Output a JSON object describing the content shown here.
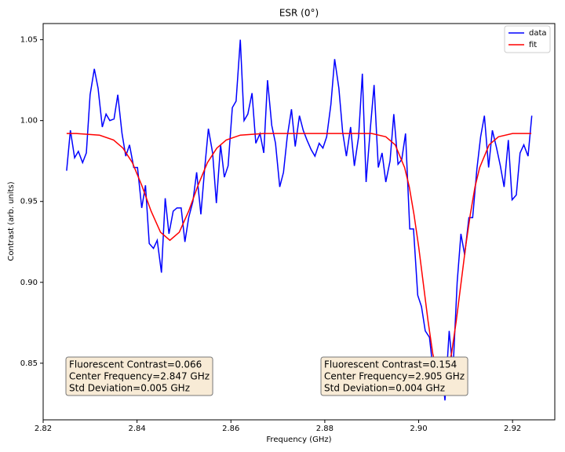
{
  "chart_data": {
    "type": "line",
    "title": "ESR (0°)",
    "x_label": "Frequency (GHz)",
    "y_label": "Contrast (arb. units)",
    "xlim": [
      2.82,
      2.929
    ],
    "ylim": [
      0.815,
      1.06
    ],
    "xticks": [
      2.82,
      2.84,
      2.86,
      2.88,
      {
        "value": 2.9,
        "label": "2.90"
      },
      2.92
    ],
    "yticks": [
      0.85,
      {
        "value": 0.9,
        "label": "0.90"
      },
      0.95,
      {
        "value": 1.0,
        "label": "1.00"
      },
      1.05
    ],
    "grid": false,
    "legend": "upper right",
    "series": [
      {
        "name": "data",
        "color": "#0000ff",
        "x": [
          2.825,
          2.8258,
          2.8267,
          2.8275,
          2.8284,
          2.8292,
          2.83,
          2.8309,
          2.8317,
          2.8326,
          2.8334,
          2.8342,
          2.8351,
          2.8359,
          2.8368,
          2.8376,
          2.8384,
          2.8393,
          2.8401,
          2.841,
          2.8418,
          2.8426,
          2.8435,
          2.8443,
          2.8452,
          2.846,
          2.8468,
          2.8477,
          2.8485,
          2.8494,
          2.8502,
          2.851,
          2.8519,
          2.8527,
          2.8536,
          2.8544,
          2.8552,
          2.8561,
          2.8569,
          2.8578,
          2.8586,
          2.8594,
          2.8603,
          2.8611,
          2.862,
          2.8628,
          2.8636,
          2.8645,
          2.8653,
          2.8662,
          2.867,
          2.8678,
          2.8687,
          2.8695,
          2.8704,
          2.8712,
          2.872,
          2.8729,
          2.8737,
          2.8746,
          2.8754,
          2.8762,
          2.8771,
          2.8779,
          2.8788,
          2.8796,
          2.8804,
          2.8813,
          2.8821,
          2.883,
          2.8838,
          2.8846,
          2.8855,
          2.8863,
          2.8872,
          2.888,
          2.8888,
          2.8897,
          2.8905,
          2.8914,
          2.8922,
          2.893,
          2.8939,
          2.8947,
          2.8956,
          2.8964,
          2.8972,
          2.8981,
          2.8989,
          2.8998,
          2.9006,
          2.9014,
          2.9023,
          2.9031,
          2.904,
          2.9048,
          2.9056,
          2.9065,
          2.9073,
          2.9082,
          2.909,
          2.9098,
          2.9107,
          2.9115,
          2.9124,
          2.9132,
          2.914,
          2.9149,
          2.9157,
          2.9166,
          2.9174,
          2.9182,
          2.9191,
          2.9199,
          2.9208,
          2.9216,
          2.9224,
          2.9233,
          2.9241
        ],
        "values": [
          0.969,
          0.994,
          0.977,
          0.981,
          0.974,
          0.98,
          1.016,
          1.032,
          1.02,
          0.996,
          1.004,
          1.0,
          1.001,
          1.016,
          0.992,
          0.978,
          0.985,
          0.971,
          0.971,
          0.946,
          0.96,
          0.924,
          0.921,
          0.926,
          0.906,
          0.952,
          0.93,
          0.944,
          0.946,
          0.946,
          0.925,
          0.94,
          0.95,
          0.968,
          0.942,
          0.97,
          0.995,
          0.98,
          0.949,
          0.985,
          0.965,
          0.972,
          1.008,
          1.012,
          1.05,
          1.0,
          1.004,
          1.017,
          0.986,
          0.992,
          0.98,
          1.025,
          0.997,
          0.986,
          0.959,
          0.968,
          0.99,
          1.007,
          0.984,
          1.003,
          0.994,
          0.988,
          0.982,
          0.978,
          0.986,
          0.983,
          0.99,
          1.01,
          1.038,
          1.02,
          0.993,
          0.978,
          0.996,
          0.972,
          0.99,
          1.029,
          0.962,
          0.995,
          1.022,
          0.971,
          0.98,
          0.962,
          0.975,
          1.004,
          0.973,
          0.976,
          0.992,
          0.933,
          0.933,
          0.892,
          0.885,
          0.87,
          0.866,
          0.845,
          0.84,
          0.85,
          0.827,
          0.87,
          0.845,
          0.9,
          0.93,
          0.917,
          0.94,
          0.94,
          0.97,
          0.99,
          1.003,
          0.971,
          0.994,
          0.983,
          0.972,
          0.959,
          0.988,
          0.951,
          0.954,
          0.98,
          0.985,
          0.978,
          1.003
        ]
      },
      {
        "name": "fit",
        "color": "#ff0000",
        "x": [
          2.825,
          2.827,
          2.832,
          2.835,
          2.837,
          2.839,
          2.841,
          2.843,
          2.845,
          2.847,
          2.849,
          2.851,
          2.853,
          2.855,
          2.857,
          2.859,
          2.862,
          2.867,
          2.89,
          2.893,
          2.895,
          2.897,
          2.898,
          2.899,
          2.9,
          2.901,
          2.902,
          2.903,
          2.904,
          2.905,
          2.906,
          2.907,
          2.908,
          2.909,
          2.91,
          2.911,
          2.912,
          2.913,
          2.915,
          2.917,
          2.92,
          2.924
        ],
        "values": [
          0.992,
          0.992,
          0.991,
          0.988,
          0.983,
          0.974,
          0.96,
          0.944,
          0.931,
          0.926,
          0.931,
          0.944,
          0.96,
          0.974,
          0.983,
          0.988,
          0.991,
          0.992,
          0.992,
          0.99,
          0.985,
          0.971,
          0.959,
          0.942,
          0.922,
          0.899,
          0.876,
          0.856,
          0.843,
          0.838,
          0.843,
          0.856,
          0.876,
          0.899,
          0.922,
          0.942,
          0.959,
          0.971,
          0.985,
          0.99,
          0.992,
          0.992
        ]
      }
    ],
    "annotations": [
      {
        "lines": [
          "Fluorescent Contrast=0.066",
          "Center Frequency=2.847 GHz",
          "Std Deviation=0.005 GHz"
        ]
      },
      {
        "lines": [
          "Fluorescent Contrast=0.154",
          "Center Frequency=2.905 GHz",
          "Std Deviation=0.004 GHz"
        ]
      }
    ]
  }
}
